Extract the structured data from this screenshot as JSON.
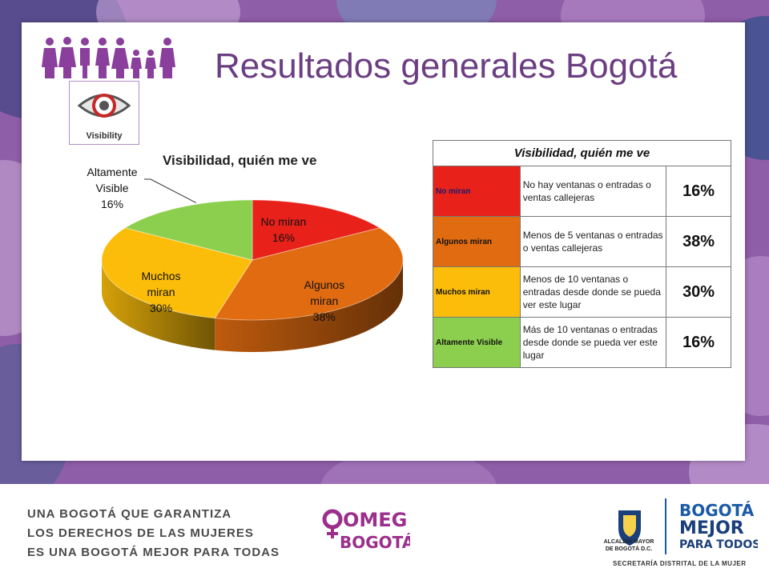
{
  "slide": {
    "title": "Resultados generales Bogotá",
    "visibility_logo_label": "Visibility"
  },
  "colors": {
    "no_miran": "#e8211a",
    "algunos_miran": "#e06b10",
    "muchos_miran": "#fbbd0a",
    "altamente_visible": "#8ccf4e",
    "title": "#6b3e82",
    "background": "#8e5ea8"
  },
  "chart_data": {
    "type": "pie",
    "title": "Visibilidad, quién me ve",
    "categories": [
      "No miran",
      "Algunos miran",
      "Muchos miran",
      "Altamente Visible"
    ],
    "values": [
      16,
      38,
      30,
      16
    ],
    "unit": "%",
    "slice_labels": [
      {
        "lines": [
          "No miran",
          "16%"
        ]
      },
      {
        "lines": [
          "Algunos",
          "miran",
          "38%"
        ]
      },
      {
        "lines": [
          "Muchos",
          "miran",
          "30%"
        ]
      },
      {
        "lines": [
          "Altamente",
          "Visible",
          "16%"
        ]
      }
    ]
  },
  "table": {
    "title": "Visibilidad, quién me ve",
    "rows": [
      {
        "category": "No miran",
        "description": "No hay ventanas o entradas o ventas callejeras",
        "percent": "16%"
      },
      {
        "category": "Algunos miran",
        "description": "Menos de 5 ventanas o entradas o ventas callejeras",
        "percent": "38%"
      },
      {
        "category": "Muchos miran",
        "description": "Menos de 10 ventanas o entradas desde donde se pueda ver este lugar",
        "percent": "30%"
      },
      {
        "category": "Altamente Visible",
        "description": "Más de 10 ventanas o entradas desde donde se pueda ver este lugar",
        "percent": "16%"
      }
    ]
  },
  "footer": {
    "slogan": [
      "UNA BOGOTÁ QUE GARANTIZA",
      "LOS DERECHOS DE LAS MUJERES",
      "ES UNA BOGOTÁ MEJOR PARA TODAS"
    ],
    "omeg_line1": "OMEG",
    "omeg_line2": "BOGOTÁ",
    "alcaldia_line1": "ALCALDÍA MAYOR",
    "alcaldia_line2": "DE BOGOTÁ D.C.",
    "bogota_line1": "BOGOTÁ",
    "bogota_line2": "MEJOR",
    "bogota_line3": "PARA TODOS",
    "secretaria": "SECRETARÍA DISTRITAL DE LA MUJER"
  }
}
